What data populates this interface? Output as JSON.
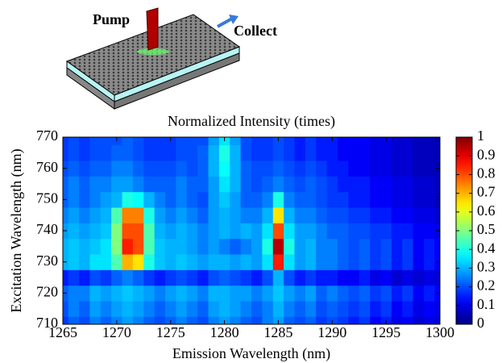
{
  "diagram": {
    "pump_label": "Pump",
    "collect_label": "Collect"
  },
  "chart_data": {
    "type": "heatmap",
    "title": "Normalized Intensity (times)",
    "xlabel": "Emission Wavelength (nm)",
    "ylabel": "Excitation Wavelength (nm)",
    "xlim": [
      1265,
      1300
    ],
    "xticks": [
      1265,
      1270,
      1275,
      1280,
      1285,
      1290,
      1295,
      1300
    ],
    "ylim": [
      710,
      770
    ],
    "yticks": [
      710,
      720,
      730,
      740,
      750,
      760,
      770
    ],
    "clim": [
      0,
      1
    ],
    "cticks": [
      0,
      0.1,
      0.2,
      0.3,
      0.4,
      0.5,
      0.6,
      0.7,
      0.8,
      0.9,
      1
    ],
    "colormap": "jet",
    "x": [
      1265,
      1266,
      1267,
      1268,
      1269,
      1270,
      1271,
      1272,
      1273,
      1274,
      1275,
      1276,
      1277,
      1278,
      1279,
      1280,
      1281,
      1282,
      1283,
      1284,
      1285,
      1286,
      1287,
      1288,
      1289,
      1290,
      1291,
      1292,
      1293,
      1294,
      1295,
      1296,
      1297,
      1298,
      1299,
      1300
    ],
    "y": [
      710,
      715,
      720,
      725,
      730,
      735,
      740,
      745,
      750,
      755,
      760,
      765,
      770
    ],
    "z": [
      [
        0.18,
        0.22,
        0.2,
        0.25,
        0.22,
        0.25,
        0.28,
        0.25,
        0.22,
        0.2,
        0.22,
        0.25,
        0.22,
        0.2,
        0.25,
        0.28,
        0.25,
        0.22,
        0.2,
        0.25,
        0.28,
        0.22,
        0.2,
        0.22,
        0.18,
        0.2,
        0.18,
        0.15,
        0.18,
        0.12,
        0.15,
        0.1,
        0.12,
        0.08,
        0.1,
        0.08
      ],
      [
        0.2,
        0.25,
        0.22,
        0.28,
        0.25,
        0.28,
        0.3,
        0.28,
        0.25,
        0.22,
        0.25,
        0.28,
        0.25,
        0.22,
        0.28,
        0.3,
        0.28,
        0.25,
        0.22,
        0.25,
        0.3,
        0.25,
        0.22,
        0.25,
        0.2,
        0.22,
        0.2,
        0.18,
        0.2,
        0.15,
        0.18,
        0.12,
        0.15,
        0.1,
        0.12,
        0.1
      ],
      [
        0.22,
        0.25,
        0.25,
        0.3,
        0.28,
        0.3,
        0.32,
        0.3,
        0.28,
        0.25,
        0.28,
        0.3,
        0.28,
        0.25,
        0.3,
        0.3,
        0.28,
        0.28,
        0.25,
        0.28,
        0.32,
        0.28,
        0.25,
        0.28,
        0.22,
        0.25,
        0.22,
        0.2,
        0.22,
        0.18,
        0.2,
        0.15,
        0.18,
        0.12,
        0.15,
        0.12
      ],
      [
        0.15,
        0.18,
        0.15,
        0.2,
        0.18,
        0.22,
        0.25,
        0.22,
        0.18,
        0.15,
        0.18,
        0.2,
        0.18,
        0.15,
        0.2,
        0.22,
        0.2,
        0.18,
        0.15,
        0.2,
        0.3,
        0.2,
        0.15,
        0.18,
        0.15,
        0.15,
        0.12,
        0.12,
        0.15,
        0.1,
        0.12,
        0.08,
        0.1,
        0.08,
        0.1,
        0.08
      ],
      [
        0.3,
        0.32,
        0.3,
        0.35,
        0.35,
        0.45,
        0.7,
        0.65,
        0.4,
        0.32,
        0.3,
        0.32,
        0.3,
        0.28,
        0.3,
        0.3,
        0.28,
        0.3,
        0.28,
        0.35,
        0.85,
        0.35,
        0.28,
        0.3,
        0.25,
        0.25,
        0.22,
        0.2,
        0.22,
        0.18,
        0.2,
        0.15,
        0.18,
        0.12,
        0.15,
        0.12
      ],
      [
        0.3,
        0.32,
        0.3,
        0.32,
        0.35,
        0.5,
        0.85,
        0.8,
        0.45,
        0.32,
        0.3,
        0.3,
        0.28,
        0.25,
        0.28,
        0.25,
        0.22,
        0.25,
        0.28,
        0.4,
        0.95,
        0.4,
        0.28,
        0.3,
        0.25,
        0.25,
        0.22,
        0.2,
        0.22,
        0.18,
        0.2,
        0.15,
        0.18,
        0.12,
        0.15,
        0.12
      ],
      [
        0.28,
        0.3,
        0.28,
        0.3,
        0.32,
        0.5,
        0.8,
        0.8,
        0.45,
        0.3,
        0.28,
        0.3,
        0.28,
        0.25,
        0.28,
        0.3,
        0.28,
        0.3,
        0.28,
        0.35,
        0.8,
        0.35,
        0.28,
        0.28,
        0.25,
        0.22,
        0.22,
        0.2,
        0.2,
        0.18,
        0.18,
        0.15,
        0.15,
        0.12,
        0.12,
        0.1
      ],
      [
        0.25,
        0.28,
        0.25,
        0.28,
        0.3,
        0.45,
        0.75,
        0.75,
        0.4,
        0.28,
        0.25,
        0.28,
        0.25,
        0.22,
        0.28,
        0.3,
        0.28,
        0.25,
        0.25,
        0.3,
        0.65,
        0.3,
        0.25,
        0.25,
        0.22,
        0.2,
        0.2,
        0.18,
        0.18,
        0.15,
        0.15,
        0.12,
        0.12,
        0.1,
        0.1,
        0.08
      ],
      [
        0.22,
        0.25,
        0.22,
        0.25,
        0.28,
        0.3,
        0.4,
        0.38,
        0.3,
        0.25,
        0.22,
        0.25,
        0.22,
        0.2,
        0.28,
        0.32,
        0.28,
        0.22,
        0.22,
        0.25,
        0.4,
        0.25,
        0.22,
        0.22,
        0.2,
        0.18,
        0.18,
        0.15,
        0.15,
        0.12,
        0.12,
        0.1,
        0.1,
        0.08,
        0.08,
        0.06
      ],
      [
        0.22,
        0.25,
        0.22,
        0.25,
        0.25,
        0.28,
        0.28,
        0.25,
        0.22,
        0.22,
        0.22,
        0.25,
        0.22,
        0.22,
        0.28,
        0.35,
        0.3,
        0.22,
        0.2,
        0.22,
        0.25,
        0.22,
        0.2,
        0.22,
        0.2,
        0.18,
        0.15,
        0.15,
        0.15,
        0.12,
        0.12,
        0.1,
        0.1,
        0.08,
        0.08,
        0.06
      ],
      [
        0.2,
        0.22,
        0.2,
        0.22,
        0.22,
        0.25,
        0.25,
        0.22,
        0.2,
        0.2,
        0.2,
        0.22,
        0.2,
        0.22,
        0.3,
        0.38,
        0.3,
        0.22,
        0.2,
        0.2,
        0.22,
        0.2,
        0.18,
        0.2,
        0.18,
        0.15,
        0.15,
        0.12,
        0.12,
        0.1,
        0.1,
        0.08,
        0.08,
        0.06,
        0.06,
        0.05
      ],
      [
        0.18,
        0.2,
        0.18,
        0.2,
        0.2,
        0.22,
        0.22,
        0.2,
        0.18,
        0.18,
        0.18,
        0.2,
        0.2,
        0.22,
        0.3,
        0.4,
        0.3,
        0.2,
        0.18,
        0.18,
        0.2,
        0.18,
        0.15,
        0.18,
        0.15,
        0.15,
        0.12,
        0.12,
        0.12,
        0.1,
        0.1,
        0.08,
        0.08,
        0.06,
        0.06,
        0.05
      ],
      [
        0.18,
        0.2,
        0.18,
        0.2,
        0.2,
        0.2,
        0.22,
        0.2,
        0.18,
        0.18,
        0.18,
        0.2,
        0.2,
        0.2,
        0.28,
        0.35,
        0.28,
        0.2,
        0.18,
        0.18,
        0.2,
        0.18,
        0.15,
        0.18,
        0.15,
        0.15,
        0.12,
        0.12,
        0.12,
        0.1,
        0.1,
        0.08,
        0.08,
        0.06,
        0.06,
        0.05
      ]
    ]
  }
}
